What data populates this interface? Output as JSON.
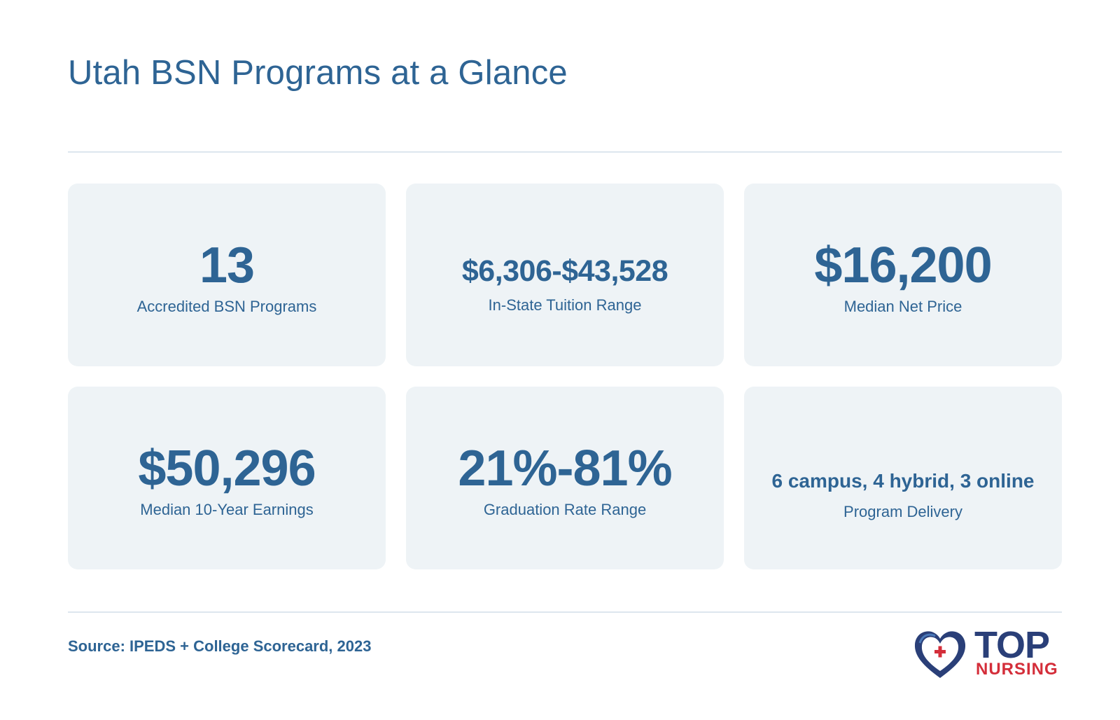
{
  "header": {
    "title": "Utah BSN Programs at a Glance"
  },
  "stats": [
    {
      "value": "13",
      "label": "Accredited BSN Programs"
    },
    {
      "value": "$6,306-$43,528",
      "label": "In-State Tuition Range"
    },
    {
      "value": "$16,200",
      "label": "Median Net Price"
    },
    {
      "value": "$50,296",
      "label": "Median 10-Year Earnings"
    },
    {
      "value": "21%-81%",
      "label": "Graduation Rate Range"
    },
    {
      "value": "6 campus, 4 hybrid, 3 online",
      "label": "Program Delivery"
    }
  ],
  "footer": {
    "source": "Source: IPEDS + College Scorecard, 2023",
    "logo": {
      "top": "TOP",
      "nursing": "NURSING",
      "icon": "heart-cross-icon"
    }
  },
  "colors": {
    "primary": "#2e6494",
    "card_bg": "#eef3f6",
    "logo_navy": "#2a3f78",
    "logo_red": "#d42e3a"
  }
}
